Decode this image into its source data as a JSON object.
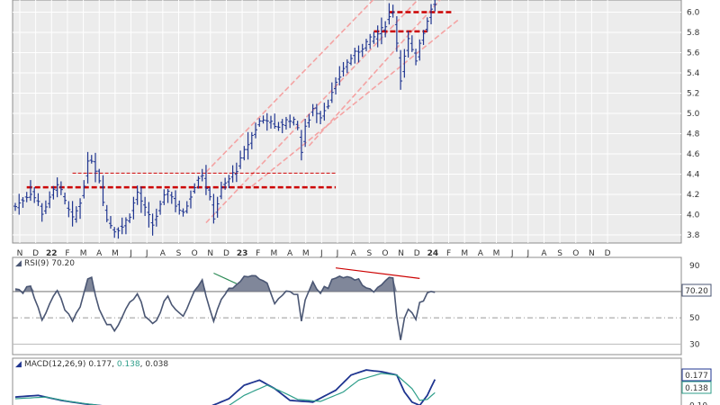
{
  "chart_data": [
    {
      "type": "ohlc",
      "panel": "price",
      "y_ticks": [
        3.8,
        4.0,
        4.2,
        4.4,
        4.6,
        4.8,
        5.0,
        5.2,
        5.4,
        5.6,
        5.8,
        6.0
      ],
      "ylim": [
        3.72,
        6.12
      ],
      "x_tick_labels": [
        "N",
        "D",
        "22",
        "F",
        "M",
        "A",
        "M",
        "J",
        "J",
        "A",
        "S",
        "O",
        "N",
        "D",
        "23",
        "F",
        "M",
        "A",
        "M",
        "J",
        "J",
        "A",
        "S",
        "O",
        "N",
        "D",
        "24",
        "F",
        "M",
        "A",
        "M",
        "J",
        "J",
        "A",
        "S",
        "O",
        "N",
        "D"
      ],
      "close_series": [
        [
          0,
          4.08
        ],
        [
          2,
          4.15
        ],
        [
          4,
          4.22
        ],
        [
          6,
          4.12
        ],
        [
          7,
          4.02
        ],
        [
          9,
          4.15
        ],
        [
          11,
          4.32
        ],
        [
          13,
          4.12
        ],
        [
          15,
          3.95
        ],
        [
          17,
          4.12
        ],
        [
          19,
          4.5
        ],
        [
          20,
          4.55
        ],
        [
          22,
          4.35
        ],
        [
          24,
          3.95
        ],
        [
          26,
          3.85
        ],
        [
          28,
          3.88
        ],
        [
          30,
          4.0
        ],
        [
          32,
          4.22
        ],
        [
          34,
          4.05
        ],
        [
          36,
          3.9
        ],
        [
          38,
          4.08
        ],
        [
          40,
          4.25
        ],
        [
          42,
          4.1
        ],
        [
          44,
          4.0
        ],
        [
          46,
          4.2
        ],
        [
          48,
          4.38
        ],
        [
          49,
          4.4
        ],
        [
          51,
          4.15
        ],
        [
          52,
          3.98
        ],
        [
          54,
          4.25
        ],
        [
          56,
          4.35
        ],
        [
          58,
          4.45
        ],
        [
          60,
          4.62
        ],
        [
          62,
          4.78
        ],
        [
          64,
          4.92
        ],
        [
          66,
          4.95
        ],
        [
          68,
          4.85
        ],
        [
          70,
          4.9
        ],
        [
          72,
          4.95
        ],
        [
          74,
          4.88
        ],
        [
          75,
          4.62
        ],
        [
          76,
          4.85
        ],
        [
          78,
          5.05
        ],
        [
          80,
          4.98
        ],
        [
          82,
          5.1
        ],
        [
          84,
          5.28
        ],
        [
          86,
          5.45
        ],
        [
          88,
          5.55
        ],
        [
          90,
          5.62
        ],
        [
          92,
          5.7
        ],
        [
          94,
          5.75
        ],
        [
          96,
          5.82
        ],
        [
          98,
          5.95
        ],
        [
          99,
          6.02
        ],
        [
          100,
          5.7
        ],
        [
          101,
          5.35
        ],
        [
          102,
          5.55
        ],
        [
          103,
          5.72
        ],
        [
          105,
          5.5
        ],
        [
          106,
          5.7
        ],
        [
          108,
          5.92
        ],
        [
          109,
          6.05
        ],
        [
          110,
          6.1
        ]
      ],
      "horizontal_lines": [
        {
          "y": 4.27,
          "x_range": [
            3,
            84
          ],
          "style": "dashed",
          "color": "#cc0000"
        },
        {
          "y": 4.41,
          "x_range": [
            15,
            84
          ],
          "style": "thin-dashed",
          "color": "#cc0000"
        },
        {
          "y": 5.81,
          "x_range": [
            94,
            108
          ],
          "style": "dashed",
          "color": "#cc0000"
        },
        {
          "y": 6.0,
          "x_range": [
            98,
            115
          ],
          "style": "dashed",
          "color": "#cc0000"
        }
      ],
      "trend_channels": [
        {
          "from": [
            50,
            3.92
          ],
          "to": [
            110,
            6.3
          ],
          "color": "#f4a3a3"
        },
        {
          "from": [
            50,
            4.42
          ],
          "to": [
            110,
            6.75
          ],
          "color": "#f4a3a3"
        },
        {
          "from": [
            62,
            4.28
          ],
          "to": [
            116,
            5.92
          ],
          "color": "#f4a3a3"
        },
        {
          "from": [
            77,
            4.68
          ],
          "to": [
            112,
            6.15
          ],
          "color": "#f4a3a3"
        }
      ],
      "colors": {
        "bars": "#1f3590",
        "support": "#cc0000",
        "trend": "#f4a3a3"
      }
    },
    {
      "type": "line",
      "panel": "rsi",
      "legend": "RSI(9) 70.20",
      "last_value": "70.20",
      "y_ticks": [
        30,
        50,
        70,
        90
      ],
      "ylim": [
        22,
        96
      ],
      "values": [
        [
          0,
          72
        ],
        [
          2,
          70
        ],
        [
          4,
          74
        ],
        [
          6,
          58
        ],
        [
          7,
          50
        ],
        [
          9,
          60
        ],
        [
          11,
          72
        ],
        [
          13,
          55
        ],
        [
          15,
          48
        ],
        [
          17,
          58
        ],
        [
          19,
          78
        ],
        [
          20,
          80
        ],
        [
          22,
          55
        ],
        [
          24,
          44
        ],
        [
          26,
          42
        ],
        [
          28,
          50
        ],
        [
          30,
          60
        ],
        [
          32,
          70
        ],
        [
          34,
          52
        ],
        [
          36,
          44
        ],
        [
          38,
          55
        ],
        [
          40,
          68
        ],
        [
          42,
          55
        ],
        [
          44,
          50
        ],
        [
          46,
          64
        ],
        [
          48,
          76
        ],
        [
          49,
          78
        ],
        [
          51,
          58
        ],
        [
          52,
          46
        ],
        [
          54,
          66
        ],
        [
          56,
          72
        ],
        [
          58,
          76
        ],
        [
          60,
          80
        ],
        [
          62,
          82
        ],
        [
          64,
          80
        ],
        [
          66,
          78
        ],
        [
          68,
          62
        ],
        [
          70,
          68
        ],
        [
          72,
          72
        ],
        [
          74,
          66
        ],
        [
          75,
          48
        ],
        [
          76,
          64
        ],
        [
          78,
          76
        ],
        [
          80,
          70
        ],
        [
          82,
          74
        ],
        [
          84,
          82
        ],
        [
          86,
          82
        ],
        [
          88,
          80
        ],
        [
          90,
          78
        ],
        [
          92,
          74
        ],
        [
          94,
          70
        ],
        [
          96,
          74
        ],
        [
          98,
          80
        ],
        [
          99,
          82
        ],
        [
          100,
          50
        ],
        [
          101,
          34
        ],
        [
          102,
          48
        ],
        [
          103,
          56
        ],
        [
          105,
          48
        ],
        [
          106,
          60
        ],
        [
          108,
          68
        ],
        [
          109,
          72
        ],
        [
          110,
          70
        ]
      ],
      "divergence_lines": [
        {
          "from": [
            52,
            84
          ],
          "to": [
            58,
            76
          ],
          "color": "#2e8b57"
        },
        {
          "from": [
            84,
            88
          ],
          "to": [
            106,
            80
          ],
          "color": "#cc0000"
        }
      ],
      "colors": {
        "line": "#4a5673",
        "fill": "#6a7288",
        "line70": "#808080",
        "line50": "#999999"
      }
    },
    {
      "type": "line",
      "panel": "macd",
      "legend": "MACD(12,26,9) 0.177, 0.138, 0.038",
      "legend_macd": "MACD(12,26,9)",
      "legend_values": [
        "0.177",
        "0.138",
        "0.038"
      ],
      "last_macd": "0.177",
      "last_signal": "0.138",
      "y_ticks": [
        0.2,
        0.15,
        0.1
      ],
      "ylim": [
        0.08,
        0.24
      ],
      "series": [
        {
          "name": "MACD",
          "color": "#1f3590",
          "values": [
            [
              0,
              0.125
            ],
            [
              6,
              0.13
            ],
            [
              12,
              0.115
            ],
            [
              18,
              0.105
            ],
            [
              22,
              0.1
            ],
            [
              30,
              0.09
            ],
            [
              40,
              0.088
            ],
            [
              50,
              0.092
            ],
            [
              56,
              0.12
            ],
            [
              60,
              0.16
            ],
            [
              64,
              0.175
            ],
            [
              68,
              0.15
            ],
            [
              72,
              0.115
            ],
            [
              78,
              0.11
            ],
            [
              84,
              0.145
            ],
            [
              88,
              0.19
            ],
            [
              92,
              0.205
            ],
            [
              96,
              0.2
            ],
            [
              100,
              0.19
            ],
            [
              102,
              0.14
            ],
            [
              104,
              0.11
            ],
            [
              106,
              0.1
            ],
            [
              108,
              0.13
            ],
            [
              110,
              0.177
            ]
          ]
        },
        {
          "name": "Signal",
          "color": "#2e9e8a",
          "values": [
            [
              0,
              0.12
            ],
            [
              8,
              0.125
            ],
            [
              14,
              0.112
            ],
            [
              22,
              0.1
            ],
            [
              30,
              0.092
            ],
            [
              40,
              0.088
            ],
            [
              50,
              0.09
            ],
            [
              56,
              0.1
            ],
            [
              60,
              0.13
            ],
            [
              66,
              0.16
            ],
            [
              70,
              0.14
            ],
            [
              74,
              0.118
            ],
            [
              80,
              0.112
            ],
            [
              86,
              0.14
            ],
            [
              90,
              0.175
            ],
            [
              96,
              0.195
            ],
            [
              100,
              0.19
            ],
            [
              104,
              0.15
            ],
            [
              106,
              0.115
            ],
            [
              108,
              0.118
            ],
            [
              110,
              0.138
            ]
          ]
        }
      ]
    }
  ]
}
